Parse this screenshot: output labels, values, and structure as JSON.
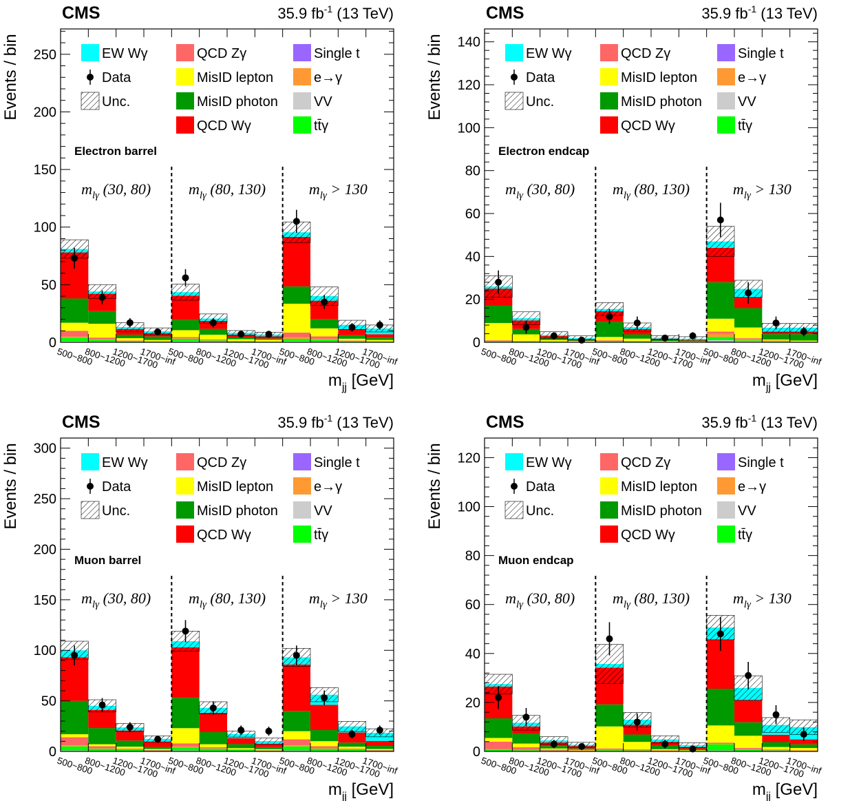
{
  "figure": {
    "experiment": "CMS",
    "lumi": "35.9 fb",
    "lumi_sup": "-1",
    "energy": " (13 TeV)",
    "ylabel": "Events / bin",
    "xlabel_main": "m",
    "xlabel_sub": "jj",
    "xlabel_unit": " [GeV]",
    "legend": [
      {
        "key": "ew",
        "label": "EW Wγ",
        "kind": "box",
        "color": "#00ffff"
      },
      {
        "key": "data",
        "label": "Data",
        "kind": "marker",
        "color": "#000000"
      },
      {
        "key": "unc",
        "label": "Unc.",
        "kind": "hatch",
        "color": "#000000"
      },
      {
        "key": "qcdz",
        "label": "QCD Zγ",
        "kind": "box",
        "color": "#ff6666"
      },
      {
        "key": "misl",
        "label": "MisID lepton",
        "kind": "box",
        "color": "#ffff00"
      },
      {
        "key": "misp",
        "label": "MisID photon",
        "kind": "box",
        "color": "#009900"
      },
      {
        "key": "qcdw",
        "label": "QCD Wγ",
        "kind": "box",
        "color": "#ff0000"
      },
      {
        "key": "st",
        "label": "Single t",
        "kind": "box",
        "color": "#9966ff"
      },
      {
        "key": "eg",
        "label": "e→γ",
        "kind": "box",
        "color": "#ff9933"
      },
      {
        "key": "vv",
        "label": "VV",
        "kind": "box",
        "color": "#cccccc"
      },
      {
        "key": "ttg",
        "label": "tt̄γ",
        "kind": "box",
        "color": "#00ff00"
      }
    ],
    "region_labels": [
      "(30, 80)",
      "(80, 130)",
      "> 130"
    ],
    "region_prefix": "m",
    "region_sub": "lγ",
    "bin_labels": [
      "500~800",
      "800~1200",
      "1200~1700",
      "1700~inf",
      "500~800",
      "800~1200",
      "1200~1700",
      "1700~inf",
      "500~800",
      "800~1200",
      "1200~1700",
      "1700~inf"
    ]
  },
  "chart_data": [
    {
      "type": "bar",
      "stacked": true,
      "title": "Electron barrel",
      "ylim": [
        0,
        272
      ],
      "yticks": [
        0,
        50,
        100,
        150,
        200,
        250
      ],
      "categories": [
        "500~800",
        "800~1200",
        "1200~1700",
        "1700~inf",
        "500~800",
        "800~1200",
        "1200~1700",
        "1700~inf",
        "500~800",
        "800~1200",
        "1200~1700",
        "1700~inf"
      ],
      "series": [
        {
          "name": "Single t",
          "values": [
            0.5,
            0.3,
            0.1,
            0.1,
            0.5,
            0.3,
            0.1,
            0.1,
            0.5,
            0.3,
            0.1,
            0.1
          ]
        },
        {
          "name": "VV",
          "values": [
            0.5,
            0.3,
            0.2,
            0.1,
            0.5,
            0.3,
            0.2,
            0.1,
            0.5,
            0.3,
            0.2,
            0.1
          ]
        },
        {
          "name": "tt̄γ",
          "values": [
            3,
            1.5,
            0.5,
            0.3,
            2,
            1,
            0.5,
            0.3,
            2,
            1.5,
            0.5,
            0.3
          ]
        },
        {
          "name": "e→γ",
          "values": [
            1,
            0.5,
            0.3,
            0.2,
            0.5,
            0.5,
            0.2,
            0.1,
            1.5,
            1,
            0.3,
            0.2
          ]
        },
        {
          "name": "QCD Zγ",
          "values": [
            5,
            1.5,
            0.5,
            0.3,
            1,
            0.5,
            0.2,
            0.1,
            4,
            2,
            0.5,
            0.3
          ]
        },
        {
          "name": "MisID lepton",
          "values": [
            7,
            12,
            2,
            1,
            6,
            4,
            1.5,
            1.5,
            25,
            7,
            1.5,
            1
          ]
        },
        {
          "name": "MisID photon",
          "values": [
            21,
            11,
            3,
            3,
            9,
            5,
            1.5,
            1,
            15,
            8,
            3,
            2
          ]
        },
        {
          "name": "QCD Wγ",
          "values": [
            40,
            15,
            5,
            3,
            21,
            7,
            2.5,
            2,
            43,
            16,
            5,
            3
          ]
        },
        {
          "name": "EW Wγ",
          "values": [
            3,
            2,
            1.5,
            1.5,
            3,
            2,
            1.5,
            1.5,
            4,
            4,
            4,
            5
          ]
        }
      ],
      "uncertainty": [
        8,
        6,
        4,
        3,
        7,
        4,
        2,
        2,
        9,
        8,
        4,
        3
      ],
      "data": [
        73,
        39,
        17,
        9,
        56,
        17,
        7,
        7,
        105,
        35,
        13,
        15
      ],
      "data_err": [
        9,
        6,
        4,
        3,
        7.5,
        4,
        2.6,
        2.6,
        10,
        6,
        3.6,
        4
      ]
    },
    {
      "type": "bar",
      "stacked": true,
      "title": "Electron endcap",
      "ylim": [
        0,
        146
      ],
      "yticks": [
        0,
        20,
        40,
        60,
        80,
        100,
        120,
        140
      ],
      "categories": [
        "500~800",
        "800~1200",
        "1200~1700",
        "1700~inf",
        "500~800",
        "800~1200",
        "1200~1700",
        "1700~inf",
        "500~800",
        "800~1200",
        "1200~1700",
        "1700~inf"
      ],
      "series": [
        {
          "name": "Single t",
          "values": [
            0.1,
            0.1,
            0.1,
            0,
            0.1,
            0.1,
            0,
            0,
            0.5,
            0.2,
            0.1,
            0
          ]
        },
        {
          "name": "VV",
          "values": [
            0.1,
            0.1,
            0.1,
            0,
            0.1,
            0.1,
            0,
            0,
            0.5,
            0.2,
            0.1,
            0
          ]
        },
        {
          "name": "tt̄γ",
          "values": [
            0.3,
            0.2,
            0.1,
            0.1,
            0.3,
            0.2,
            0.1,
            0.1,
            1.5,
            0.5,
            0.2,
            0.1
          ]
        },
        {
          "name": "e→γ",
          "values": [
            0.2,
            0.1,
            0.1,
            0.1,
            0.2,
            0.1,
            0.1,
            0,
            1.5,
            0.5,
            0.2,
            0.1
          ]
        },
        {
          "name": "QCD Zγ",
          "values": [
            0.3,
            0.2,
            0.1,
            0.1,
            0.3,
            0.2,
            0.1,
            0.1,
            1,
            0.5,
            0.2,
            0.1
          ]
        },
        {
          "name": "MisID lepton",
          "values": [
            8,
            3,
            0.6,
            0.4,
            1.5,
            1,
            0.3,
            0.3,
            6,
            5,
            0.5,
            0.5
          ]
        },
        {
          "name": "MisID photon",
          "values": [
            8,
            2.5,
            0.8,
            0.4,
            7,
            2,
            0.6,
            0.4,
            17,
            9,
            2.5,
            3
          ]
        },
        {
          "name": "QCD Wγ",
          "values": [
            8,
            4,
            1,
            0.4,
            5,
            2.5,
            0.5,
            0.3,
            16,
            5,
            1,
            1
          ]
        },
        {
          "name": "EW Wγ",
          "values": [
            1,
            1,
            0.5,
            0.5,
            1,
            0.8,
            0.4,
            0.4,
            3,
            4,
            2,
            2
          ]
        }
      ],
      "uncertainty": [
        5,
        3,
        1.5,
        1,
        3,
        2,
        1,
        1,
        7,
        4,
        2,
        2
      ],
      "data": [
        28,
        7,
        3,
        1,
        12,
        9,
        2,
        3,
        57,
        23,
        9,
        5
      ],
      "data_err": [
        5.5,
        3,
        1.7,
        1,
        3.5,
        3,
        1.4,
        1.7,
        8,
        5,
        3,
        2.2
      ]
    },
    {
      "type": "bar",
      "stacked": true,
      "title": "Muon barrel",
      "ylim": [
        0,
        310
      ],
      "yticks": [
        0,
        50,
        100,
        150,
        200,
        250,
        300
      ],
      "categories": [
        "500~800",
        "800~1200",
        "1200~1700",
        "1700~inf",
        "500~800",
        "800~1200",
        "1200~1700",
        "1700~inf",
        "500~800",
        "800~1200",
        "1200~1700",
        "1700~inf"
      ],
      "series": [
        {
          "name": "Single t",
          "values": [
            0.5,
            0.3,
            0.2,
            0.1,
            0.5,
            0.3,
            0.2,
            0.1,
            0.5,
            0.3,
            0.2,
            0.1
          ]
        },
        {
          "name": "VV",
          "values": [
            0.5,
            0.3,
            0.2,
            0.1,
            0.5,
            0.3,
            0.2,
            0.1,
            0.5,
            0.3,
            0.2,
            0.1
          ]
        },
        {
          "name": "tt̄γ",
          "values": [
            4,
            2,
            1,
            0.5,
            3,
            2,
            1,
            0.5,
            4,
            2,
            1,
            0.5
          ]
        },
        {
          "name": "e→γ",
          "values": [
            1,
            0.5,
            0.3,
            0.2,
            1,
            0.5,
            0.3,
            0.2,
            1,
            0.5,
            0.3,
            0.2
          ]
        },
        {
          "name": "QCD Zγ",
          "values": [
            8,
            2,
            1,
            0.5,
            3,
            1,
            0.5,
            0.3,
            6,
            2,
            1,
            0.5
          ]
        },
        {
          "name": "MisID lepton",
          "values": [
            3,
            2,
            2,
            1,
            15,
            3,
            1,
            1,
            8,
            5,
            2,
            1
          ]
        },
        {
          "name": "MisID photon",
          "values": [
            33,
            16,
            6,
            2,
            30,
            12,
            4,
            2,
            20,
            11,
            4,
            3
          ]
        },
        {
          "name": "QCD Wγ",
          "values": [
            43,
            18,
            10,
            5,
            50,
            19,
            6,
            3,
            46,
            25,
            10,
            5
          ]
        },
        {
          "name": "EW Wγ",
          "values": [
            7,
            4,
            3,
            3,
            6,
            5,
            4,
            3,
            7,
            10,
            6,
            8
          ]
        }
      ],
      "uncertainty": [
        9,
        6,
        4,
        3,
        10,
        6,
        3,
        3,
        9,
        7,
        5,
        4
      ],
      "data": [
        95,
        46,
        24,
        12,
        119,
        43,
        21,
        20,
        95,
        53,
        17,
        21
      ]
    },
    {
      "type": "bar",
      "stacked": true,
      "title": "Muon endcap",
      "ylim": [
        0,
        128
      ],
      "yticks": [
        0,
        20,
        40,
        60,
        80,
        100,
        120
      ],
      "categories": [
        "500~800",
        "800~1200",
        "1200~1700",
        "1700~inf",
        "500~800",
        "800~1200",
        "1200~1700",
        "1700~inf",
        "500~800",
        "800~1200",
        "1200~1700",
        "1700~inf"
      ],
      "series": [
        {
          "name": "Single t",
          "values": [
            0.1,
            0.1,
            0.1,
            0,
            0.1,
            0.1,
            0,
            0,
            0.2,
            0.1,
            0.1,
            0
          ]
        },
        {
          "name": "VV",
          "values": [
            0.1,
            0.1,
            0.1,
            0,
            0.1,
            0.1,
            0,
            0,
            0.2,
            0.1,
            0.1,
            0
          ]
        },
        {
          "name": "tt̄γ",
          "values": [
            0.5,
            0.3,
            0.1,
            0.1,
            0.3,
            0.2,
            0.1,
            0.1,
            2.5,
            0.5,
            0.2,
            0.1
          ]
        },
        {
          "name": "e→γ",
          "values": [
            0.3,
            0.2,
            0.1,
            0.1,
            0.2,
            0.2,
            0.1,
            0,
            0.2,
            0.2,
            0.1,
            0.1
          ]
        },
        {
          "name": "QCD Zγ",
          "values": [
            3,
            1,
            0.3,
            0.2,
            0.5,
            0.3,
            0.2,
            0.1,
            0.5,
            0.5,
            0.3,
            0.2
          ]
        },
        {
          "name": "MisID lepton",
          "values": [
            1.5,
            1.5,
            0.5,
            0.3,
            9,
            3,
            0.5,
            0.3,
            7,
            5,
            1,
            1
          ]
        },
        {
          "name": "MisID photon",
          "values": [
            8,
            4,
            1,
            0.5,
            9,
            3,
            1.5,
            0.5,
            15,
            5.5,
            2,
            1.5
          ]
        },
        {
          "name": "QCD Wγ",
          "values": [
            13,
            3,
            1.5,
            1,
            15,
            4,
            1.5,
            0.8,
            20,
            9,
            3,
            2
          ]
        },
        {
          "name": "EW Wγ",
          "values": [
            1,
            1.5,
            0.8,
            0.5,
            1.5,
            2,
            1,
            0.7,
            5,
            5,
            4,
            5
          ]
        }
      ],
      "uncertainty": [
        4,
        3,
        1.5,
        1,
        8,
        3,
        1.5,
        1,
        5,
        5,
        3,
        3
      ],
      "data": [
        22,
        14,
        3,
        2,
        46,
        12,
        3,
        1,
        48,
        31,
        15,
        7
      ]
    }
  ]
}
